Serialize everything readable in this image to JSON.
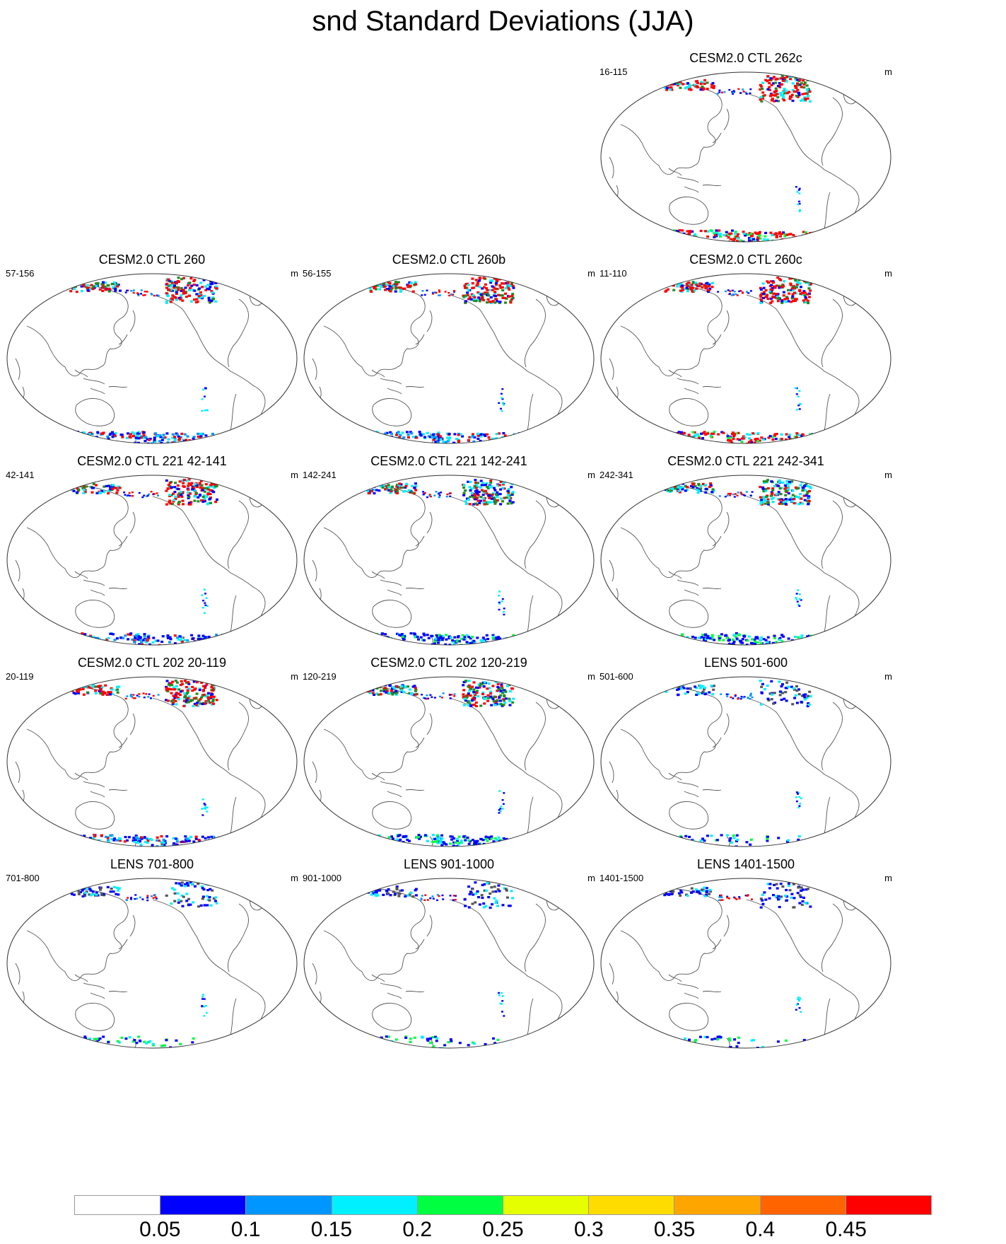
{
  "title": "snd Standard Deviations (JJA)",
  "unit": "m",
  "panels": [
    {
      "title": "CESM2.0 CTL 262c",
      "range": "16-115",
      "row": 0,
      "col": 2,
      "intensity": "high"
    },
    {
      "title": "CESM2.0 CTL 260",
      "range": "57-156",
      "row": 1,
      "col": 0,
      "intensity": "medium"
    },
    {
      "title": "CESM2.0 CTL 260b",
      "range": "56-155",
      "row": 1,
      "col": 1,
      "intensity": "medium"
    },
    {
      "title": "CESM2.0 CTL 260c",
      "range": "11-110",
      "row": 1,
      "col": 2,
      "intensity": "high"
    },
    {
      "title": "CESM2.0 CTL 221 42-141",
      "range": "42-141",
      "row": 2,
      "col": 0,
      "intensity": "medium"
    },
    {
      "title": "CESM2.0 CTL 221 142-241",
      "range": "142-241",
      "row": 2,
      "col": 1,
      "intensity": "low"
    },
    {
      "title": "CESM2.0 CTL 221 242-341",
      "range": "242-341",
      "row": 2,
      "col": 2,
      "intensity": "low"
    },
    {
      "title": "CESM2.0 CTL 202 20-119",
      "range": "20-119",
      "row": 3,
      "col": 0,
      "intensity": "medium"
    },
    {
      "title": "CESM2.0 CTL 202 120-219",
      "range": "120-219",
      "row": 3,
      "col": 1,
      "intensity": "low"
    },
    {
      "title": "LENS 501-600",
      "range": "501-600",
      "row": 3,
      "col": 2,
      "intensity": "lens"
    },
    {
      "title": "LENS 701-800",
      "range": "701-800",
      "row": 4,
      "col": 0,
      "intensity": "lens"
    },
    {
      "title": "LENS 901-1000",
      "range": "901-1000",
      "row": 4,
      "col": 1,
      "intensity": "lens"
    },
    {
      "title": "LENS 1401-1500",
      "range": "1401-1500",
      "row": 4,
      "col": 2,
      "intensity": "lens"
    }
  ],
  "colorbar": {
    "colors": [
      "#ffffff",
      "#0000ff",
      "#0096ff",
      "#00f0ff",
      "#00ff40",
      "#e6ff00",
      "#ffdc00",
      "#ffa500",
      "#ff6400",
      "#ff0000"
    ],
    "labels": [
      "0.05",
      "0.1",
      "0.15",
      "0.2",
      "0.25",
      "0.3",
      "0.35",
      "0.4",
      "0.45"
    ]
  }
}
